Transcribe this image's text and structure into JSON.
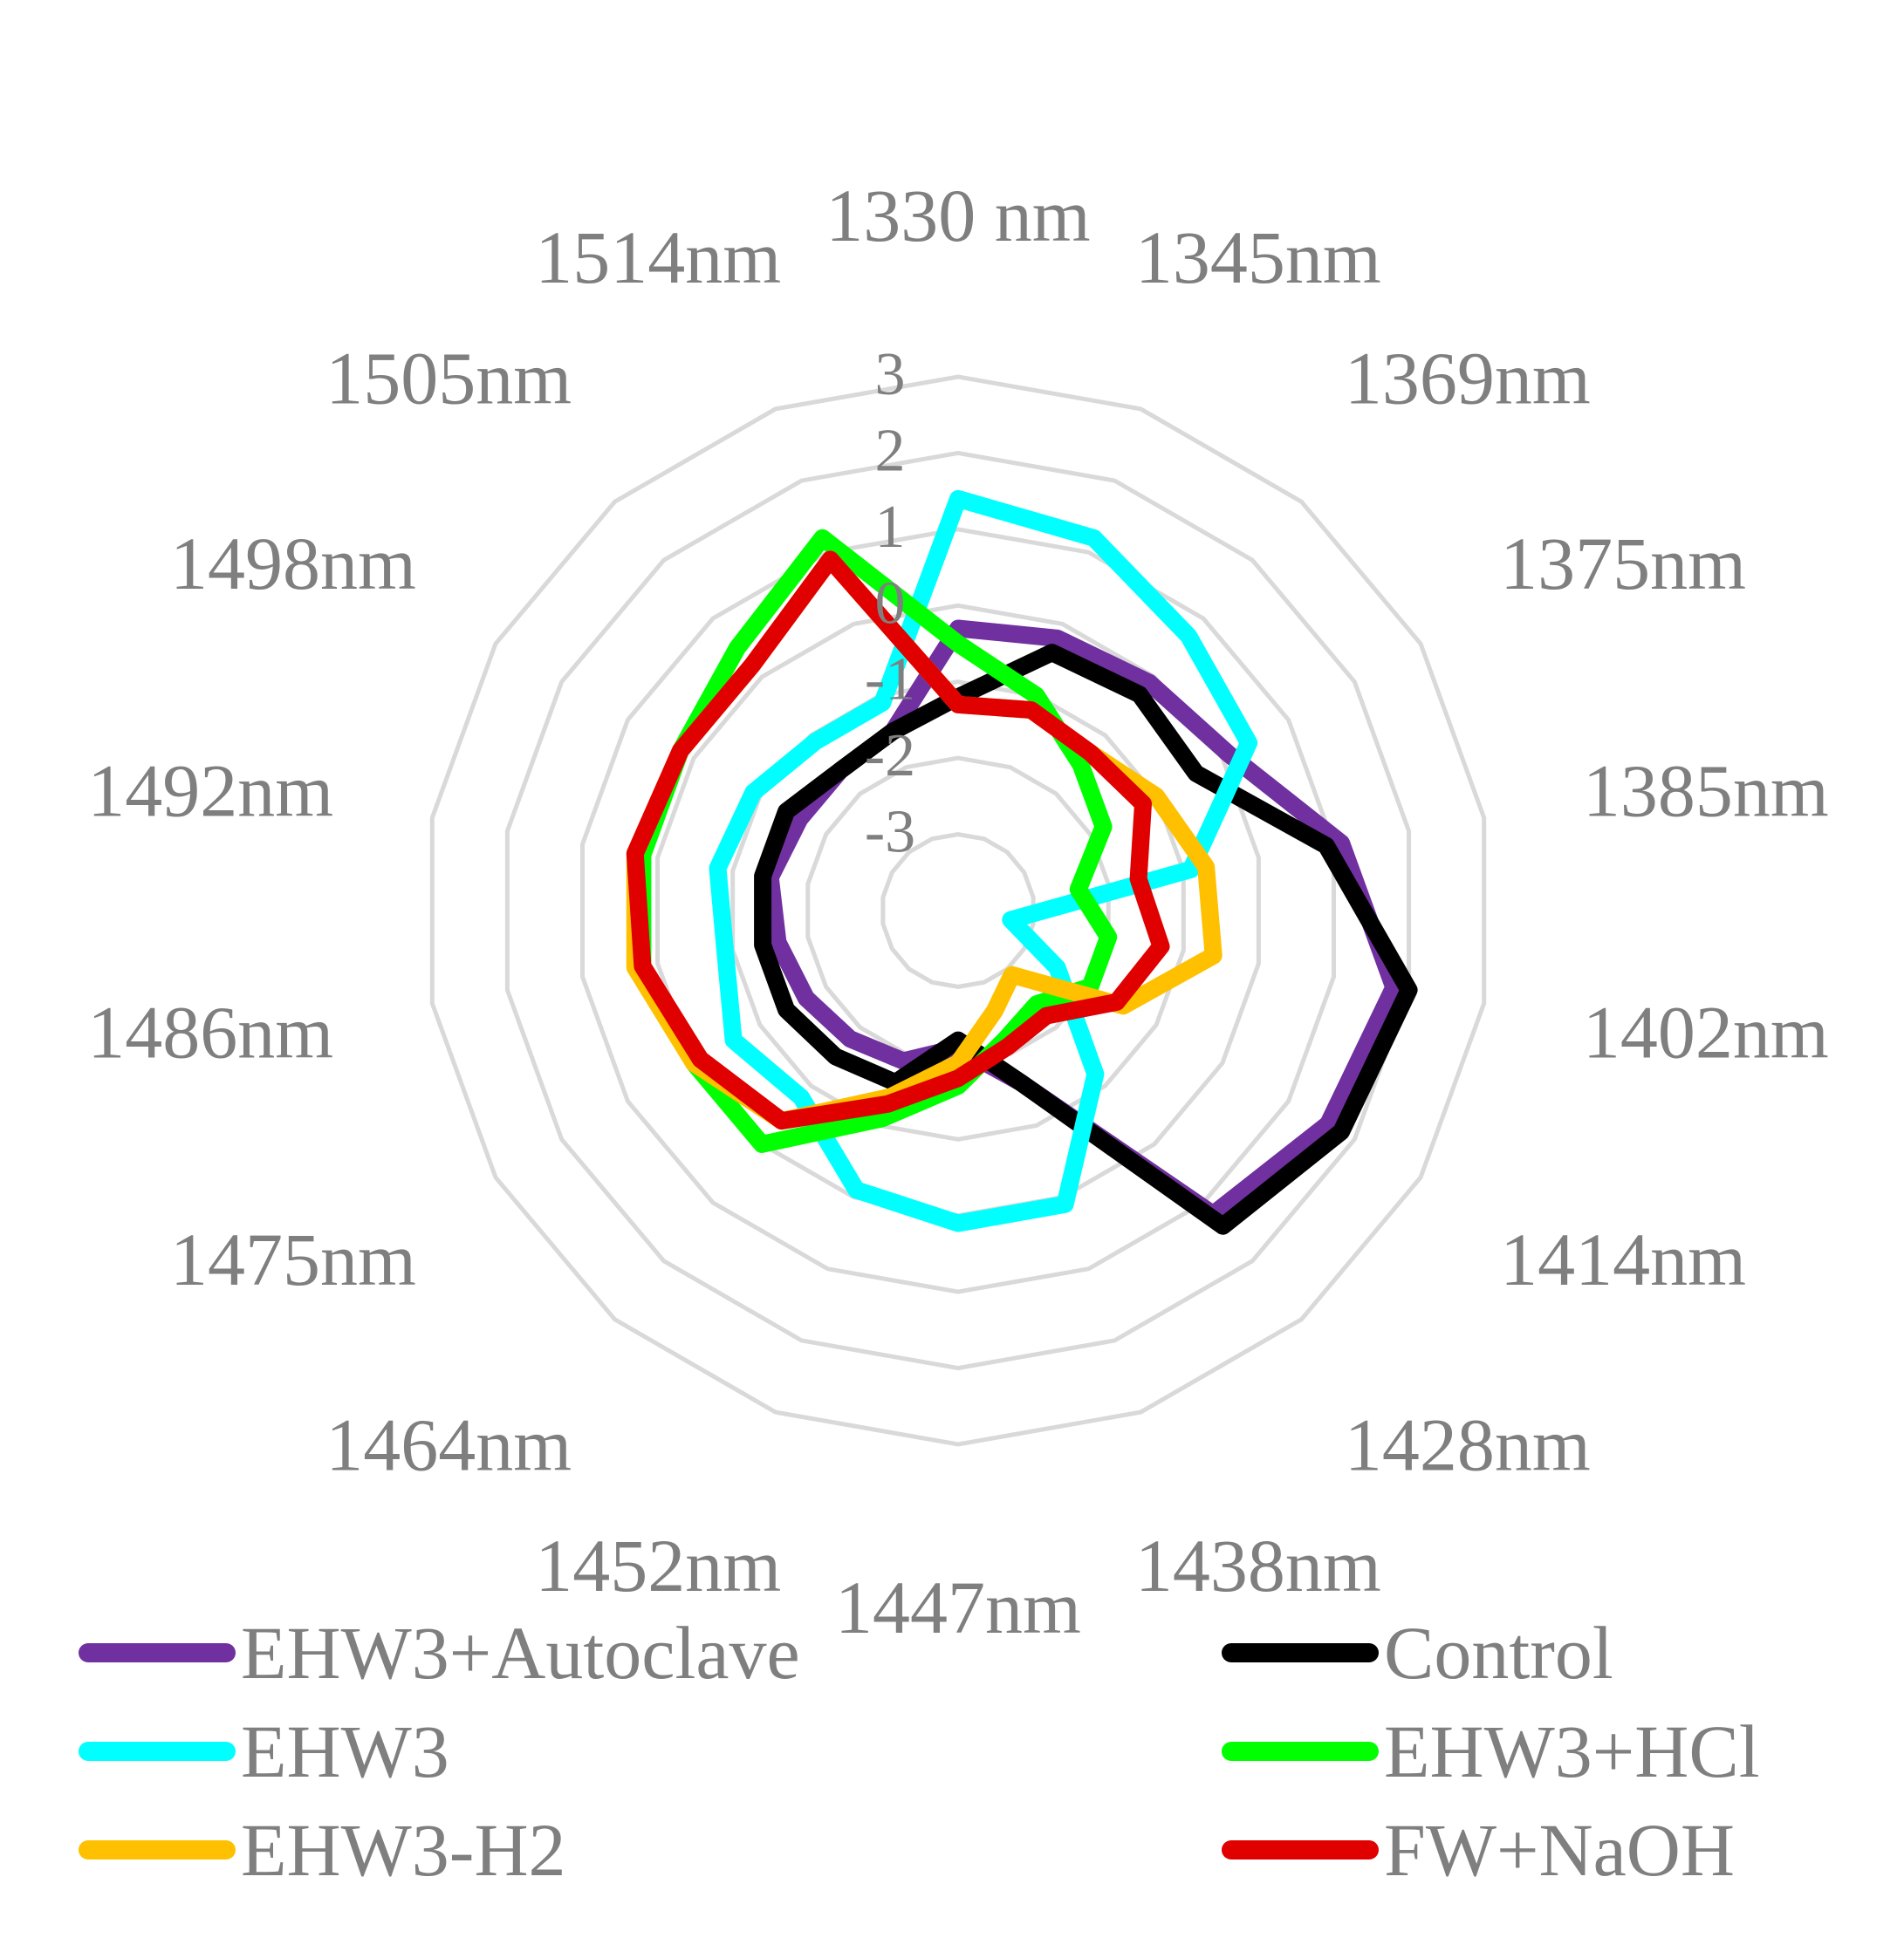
{
  "chart_data": {
    "type": "radar",
    "categories": [
      "1330 nm",
      "1345nm",
      "1369nm",
      "1375nm",
      "1385nm",
      "1402nm",
      "1414nm",
      "1428nm",
      "1438nm",
      "1447nm",
      "1452nm",
      "1464nm",
      "1475nm",
      "1486nm",
      "1492nm",
      "1498nm",
      "1505nm",
      "1514nm"
    ],
    "rlim": [
      -4,
      3
    ],
    "ticks": [
      3,
      2,
      1,
      0,
      -1,
      -2,
      -3
    ],
    "tick_labels": [
      "3",
      "2",
      "1",
      "0",
      "-1",
      "-2",
      "-3"
    ],
    "grid": true,
    "legend_position": "bottom",
    "series": [
      {
        "name": "EHW3+Autoclave",
        "color": "#7030a0",
        "values": [
          -0.3,
          -0.2,
          -0.1,
          0.1,
          1.1,
          1.8,
          1.6,
          1.2,
          -1.6,
          -2.2,
          -1.9,
          -1.8,
          -1.7,
          -1.6,
          -1.5,
          -1.6,
          -1.6,
          -1.5
        ]
      },
      {
        "name": "Control",
        "color": "#000000",
        "values": [
          -1.2,
          -0.4,
          -0.3,
          -0.4,
          0.9,
          2.0,
          1.8,
          1.4,
          -1.6,
          -2.3,
          -1.6,
          -1.5,
          -1.4,
          -1.4,
          -1.4,
          -1.4,
          -1.6,
          -1.5
        ]
      },
      {
        "name": "EHW3",
        "color": "#00ffff",
        "values": [
          1.4,
          1.2,
          0.7,
          0.4,
          -0.9,
          -3.3,
          -2.5,
          -1.2,
          0.1,
          0.1,
          -0.1,
          -0.8,
          -0.6,
          -0.9,
          -0.8,
          -0.9,
          -1.1,
          -1.1
        ]
      },
      {
        "name": "EHW3+HCl",
        "color": "#00ff00",
        "values": [
          -0.5,
          -1.0,
          -1.5,
          -1.8,
          -2.4,
          -2.0,
          -2.0,
          -2.4,
          -2.2,
          -1.7,
          -1.1,
          0.0,
          0.0,
          0.2,
          0.2,
          0.2,
          0.5,
          1.2
        ]
      },
      {
        "name": "EHW3-H2",
        "color": "#ffc000",
        "values": [
          -1.3,
          -1.2,
          -1.3,
          -1.0,
          -0.7,
          -0.6,
          -1.5,
          -2.9,
          -2.6,
          -2.0,
          -1.4,
          -0.4,
          0.0,
          0.3,
          0.3,
          0.2,
          0.2,
          0.9
        ]
      },
      {
        "name": "FW+NaOH",
        "color": "#e00000",
        "values": [
          -1.3,
          -1.2,
          -1.3,
          -1.2,
          -1.6,
          -1.3,
          -1.6,
          -2.2,
          -2.1,
          -1.8,
          -1.3,
          -0.4,
          -0.1,
          0.2,
          0.3,
          0.2,
          0.2,
          0.9
        ]
      }
    ]
  }
}
